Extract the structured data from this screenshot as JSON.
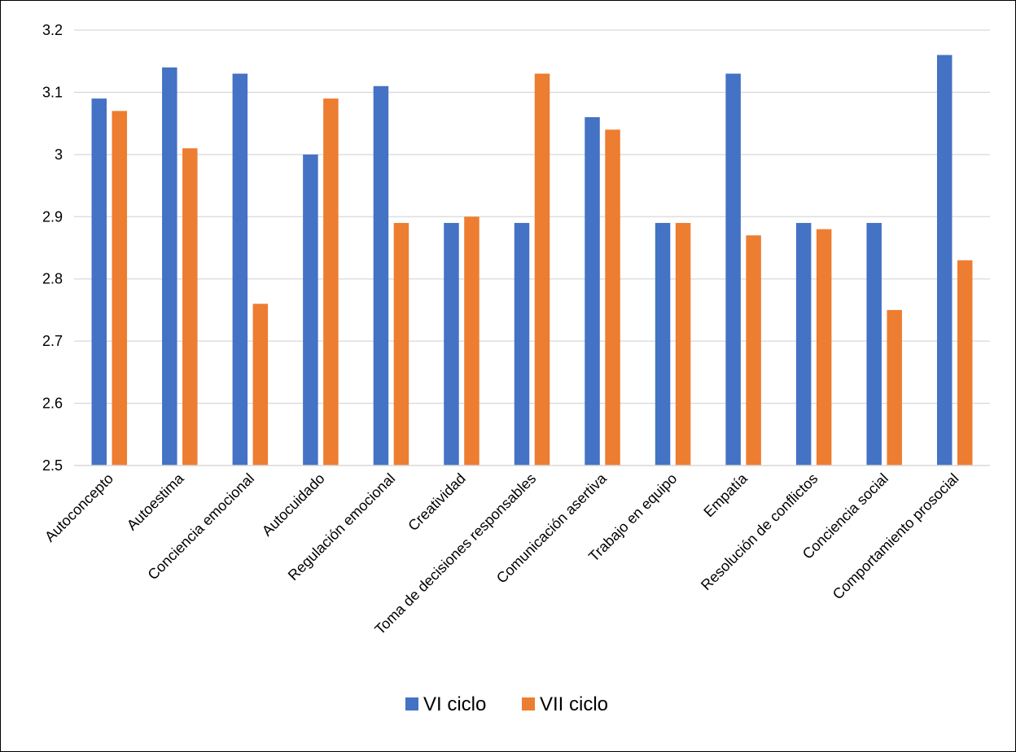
{
  "chart_data": {
    "type": "bar",
    "title": "",
    "xlabel": "",
    "ylabel": "",
    "ylim": [
      2.5,
      3.2
    ],
    "yticks": [
      "2.5",
      "2.6",
      "2.7",
      "2.8",
      "2.9",
      "3",
      "3.1",
      "3.2"
    ],
    "grid": "horizontal",
    "legend_position": "bottom",
    "categories": [
      "Autoconcepto",
      "Autoestima",
      "Conciencia emocional",
      "Autocuidado",
      "Regulación emocional",
      "Creatividad",
      "Toma de decisiones responsables",
      "Comunicación asertiva",
      "Trabajo en equipo",
      "Empatía",
      "Resolución de conflictos",
      "Conciencia social",
      "Comportamiento prosocial"
    ],
    "series": [
      {
        "name": "VI ciclo",
        "color": "#4472C4",
        "values": [
          3.09,
          3.14,
          3.13,
          3.0,
          3.11,
          2.89,
          2.89,
          3.06,
          2.89,
          3.13,
          2.89,
          2.89,
          3.16
        ]
      },
      {
        "name": "VII ciclo",
        "color": "#ED7D31",
        "values": [
          3.07,
          3.01,
          2.76,
          3.09,
          2.89,
          2.9,
          3.13,
          3.04,
          2.89,
          2.87,
          2.88,
          2.75,
          2.83
        ]
      }
    ]
  }
}
